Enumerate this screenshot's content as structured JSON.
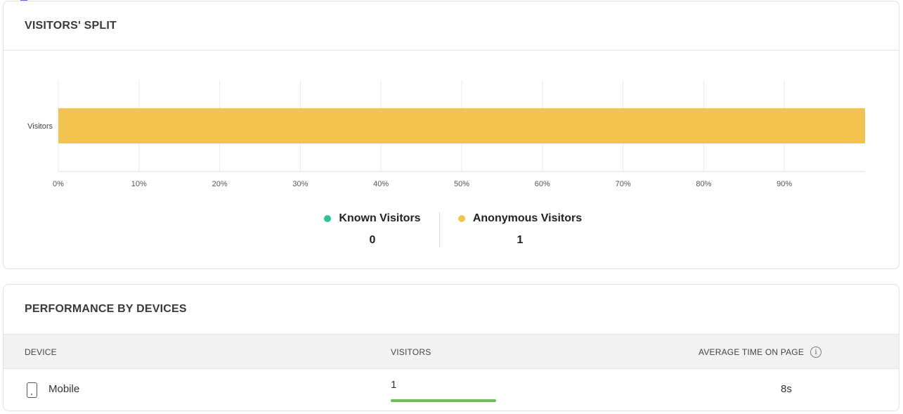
{
  "visitors_split": {
    "title": "VISITORS' SPLIT",
    "legend": [
      {
        "label": "Known Visitors",
        "value": "0",
        "color": "#2cc197"
      },
      {
        "label": "Anonymous Visitors",
        "value": "1",
        "color": "#f2c44e"
      }
    ]
  },
  "chart_data": {
    "type": "bar",
    "orientation": "horizontal",
    "categories": [
      "Visitors"
    ],
    "series": [
      {
        "name": "Known Visitors",
        "values": [
          0
        ],
        "color": "#2cc197"
      },
      {
        "name": "Anonymous Visitors",
        "values": [
          100
        ],
        "color": "#f2c44e"
      }
    ],
    "stacked": true,
    "xlim": [
      0,
      100
    ],
    "x_ticks": [
      "0%",
      "10%",
      "20%",
      "30%",
      "40%",
      "50%",
      "60%",
      "70%",
      "80%",
      "90%"
    ],
    "grid": true
  },
  "performance": {
    "title": "PERFORMANCE BY DEVICES",
    "columns": {
      "device": "DEVICE",
      "visitors": "VISITORS",
      "time": "AVERAGE TIME ON PAGE"
    },
    "info_icon": "info-icon",
    "rows": [
      {
        "device": "Mobile",
        "device_icon": "mobile-phone-icon",
        "visitors": "1",
        "visitors_share": 1.0,
        "avg_time": "8s",
        "bar_color": "#6dbf55"
      }
    ]
  }
}
